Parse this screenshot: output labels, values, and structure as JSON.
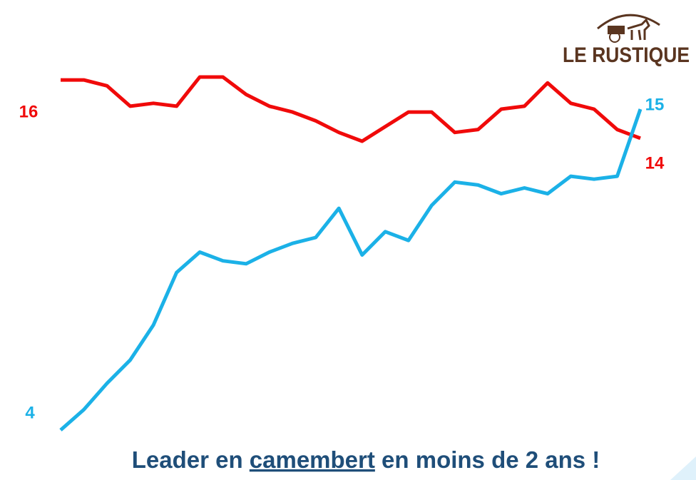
{
  "logo": "LE RUSTIQUE",
  "chart_data": {
    "type": "line",
    "caption": [
      "Leader en ",
      "camembert",
      " en moins de 2 ans !"
    ],
    "series": [
      {
        "color": "#f00a0a",
        "values": [
          16,
          16,
          15.8,
          15.1,
          15.2,
          15.1,
          16.1,
          16.1,
          15.5,
          15.1,
          14.9,
          14.6,
          14.2,
          13.9,
          14.4,
          14.9,
          14.9,
          14.2,
          14.3,
          15,
          15.1,
          15.9,
          15.2,
          15,
          14.3,
          14
        ]
      },
      {
        "color": "#1bb1e7",
        "values": [
          4,
          4.7,
          5.6,
          6.4,
          7.6,
          9.4,
          10.1,
          9.8,
          9.7,
          10.1,
          10.4,
          10.6,
          11.6,
          10,
          10.8,
          10.5,
          11.7,
          12.5,
          12.4,
          12.1,
          12.3,
          12.1,
          12.7,
          12.6,
          12.7,
          15
        ]
      }
    ]
  }
}
